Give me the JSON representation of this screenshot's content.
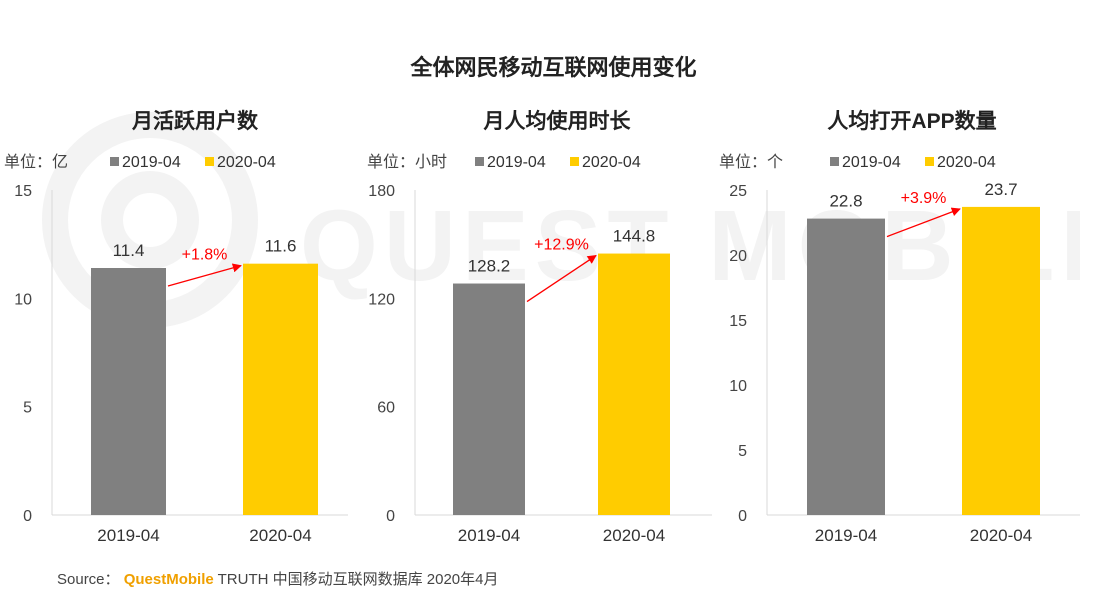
{
  "title": "全体网民移动互联网使用变化",
  "legend": [
    {
      "name": "2019-04",
      "color": "#808080"
    },
    {
      "name": "2020-04",
      "color": "#ffcc00"
    }
  ],
  "source": {
    "label": "Source：",
    "brand": "QuestMobile",
    "text": "TRUTH 中国移动互联网数据库 2020年4月"
  },
  "watermark_text": "QUEST MOBILE",
  "chart_data": [
    {
      "type": "bar",
      "title": "月活跃用户数",
      "unit_label": "单位：亿",
      "categories": [
        "2019-04",
        "2020-04"
      ],
      "values": [
        11.4,
        11.6
      ],
      "value_labels": [
        "11.4",
        "11.6"
      ],
      "ylim": [
        0,
        15
      ],
      "yticks": [
        0,
        5,
        10,
        15
      ],
      "change_label": "+1.8%",
      "colors": [
        "#808080",
        "#ffcc00"
      ]
    },
    {
      "type": "bar",
      "title": "月人均使用时长",
      "unit_label": "单位：小时",
      "categories": [
        "2019-04",
        "2020-04"
      ],
      "values": [
        128.2,
        144.8
      ],
      "value_labels": [
        "128.2",
        "144.8"
      ],
      "ylim": [
        0,
        180
      ],
      "yticks": [
        0,
        60,
        120,
        180
      ],
      "change_label": "+12.9%",
      "colors": [
        "#808080",
        "#ffcc00"
      ]
    },
    {
      "type": "bar",
      "title": "人均打开APP数量",
      "unit_label": "单位：个",
      "categories": [
        "2019-04",
        "2020-04"
      ],
      "values": [
        22.8,
        23.7
      ],
      "value_labels": [
        "22.8",
        "23.7"
      ],
      "ylim": [
        0,
        25
      ],
      "yticks": [
        0,
        5,
        10,
        15,
        20,
        25
      ],
      "change_label": "+3.9%",
      "colors": [
        "#808080",
        "#ffcc00"
      ]
    }
  ]
}
